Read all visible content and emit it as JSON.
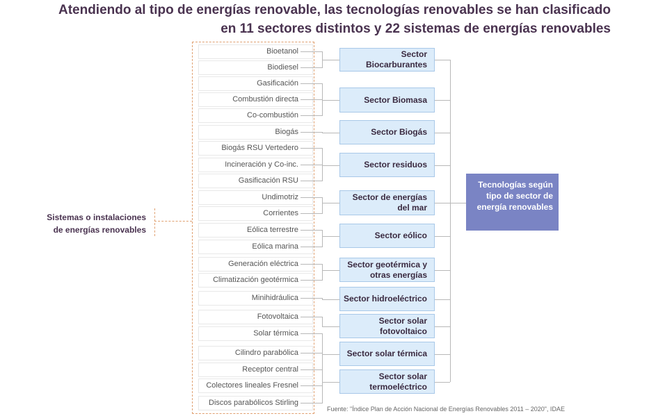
{
  "title": {
    "line1": "Atendiendo al tipo de energías renovable, las tecnologías renovables se han clasificado",
    "line2": "en 11 sectores distintos y 22 sistemas de energías renovables"
  },
  "root": "Tecnologías según tipo de sector de energía renovables",
  "left_label": {
    "line1": "Sistemas o instalaciones",
    "line2": "de energías renovables"
  },
  "sectors": [
    "Sector Biocarburantes",
    "Sector Biomasa",
    "Sector Biogás",
    "Sector residuos",
    "Sector de energías del mar",
    "Sector eólico",
    "Sector geotérmica y otras energías",
    "Sector hidroeléctrico",
    "Sector solar fotovoltaico",
    "Sector solar térmica",
    "Sector solar termoeléctrico"
  ],
  "systems": [
    "Bioetanol",
    "Biodiesel",
    "Gasificación",
    "Combustión directa",
    "Co-combustión",
    "Biogás",
    "Biogás RSU Vertedero",
    "Incineración y Co-inc.",
    "Gasificación RSU",
    "Undimotriz",
    "Corrientes",
    "Eólica terrestre",
    "Eólica marina",
    "Generación eléctrica",
    "Climatización geotérmica",
    "Minihidráulica",
    "Fotovoltaica",
    "Solar térmica",
    "Cilindro parabólica",
    "Receptor central",
    "Colectores lineales Fresnel",
    "Discos parabólicos Stirling"
  ],
  "source": "Fuente: \"Índice Plan de Acción Nacional de Energías Renovables 2011 – 2020\", IDAE",
  "colors": {
    "root": "#7a84c4",
    "sector": "#dcecfa",
    "dashed": "#e0a070",
    "title": "#4a3350"
  }
}
